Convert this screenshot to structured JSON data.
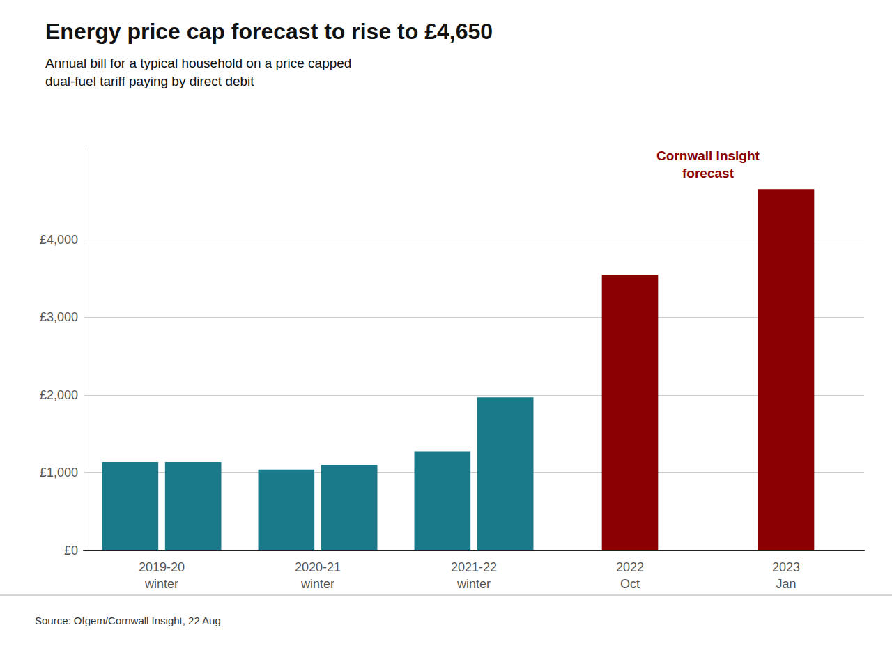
{
  "chart_data": {
    "type": "bar",
    "title": "Energy price cap forecast to rise to £4,650",
    "subtitle": "Annual bill for a typical household on a price capped\ndual-fuel tariff paying by direct debit",
    "source": "Source: Ofgem/Cornwall Insight, 22 Aug",
    "annotation": "Cornwall Insight\nforecast",
    "categories": [
      "2019-20\nwinter",
      "2020-21\nwinter",
      "2021-22\nwinter",
      "2022\nOct",
      "2023\nJan"
    ],
    "series": [
      {
        "color": "#1a7a8a",
        "values": [
          1138,
          1042,
          1277,
          null,
          null
        ]
      },
      {
        "color": "#1a7a8a",
        "values": [
          1138,
          1100,
          1971,
          null,
          null
        ]
      },
      {
        "color": "#8b0000",
        "values": [
          null,
          null,
          null,
          3549,
          4650
        ]
      }
    ],
    "ylim": [
      0,
      5200
    ],
    "yticks": [
      {
        "value": 0,
        "label": "£0"
      },
      {
        "value": 1000,
        "label": "£1,000"
      },
      {
        "value": 2000,
        "label": "£2,000"
      },
      {
        "value": 3000,
        "label": "£3,000"
      },
      {
        "value": 4000,
        "label": "£4,000"
      }
    ],
    "grid": true
  }
}
